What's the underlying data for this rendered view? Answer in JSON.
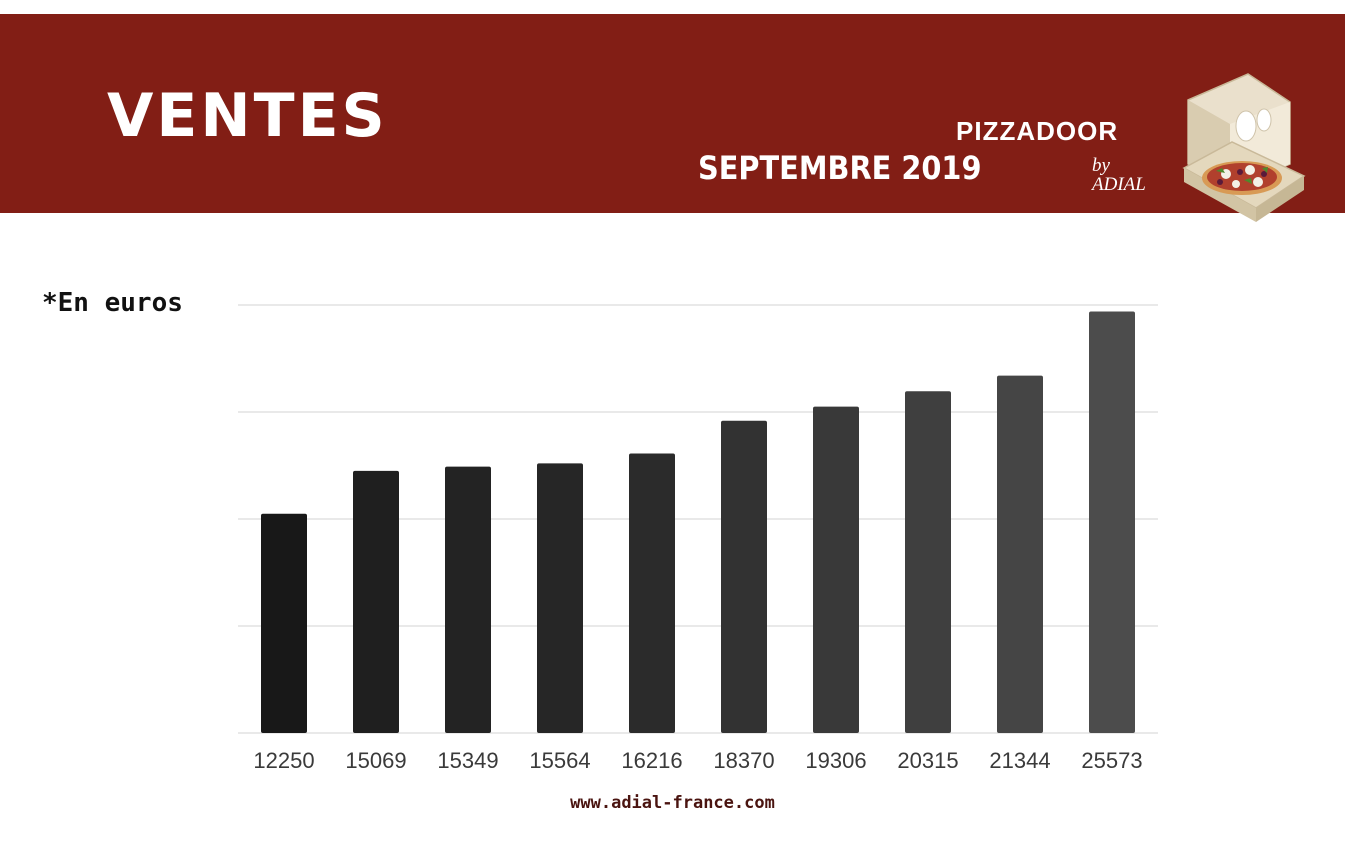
{
  "header": {
    "title": "VENTES",
    "period": "SEPTEMBRE 2019",
    "logo_brand": "PIZZADOOR",
    "logo_by": "by ADIAL",
    "logo_icon": "pizza-box-icon",
    "background_color": "#821e15"
  },
  "unit_note": "*En euros",
  "footer": {
    "url": "www.adial-france.com"
  },
  "chart_data": {
    "type": "bar",
    "categories": [
      "12250",
      "15069",
      "15349",
      "15564",
      "16216",
      "18370",
      "19306",
      "20315",
      "21344",
      "25573"
    ],
    "values": [
      12250,
      15069,
      15349,
      15564,
      16216,
      18370,
      19306,
      20315,
      21344,
      25573
    ],
    "title": "",
    "xlabel": "",
    "ylabel": "",
    "ylim": [
      -2200,
      26000
    ],
    "grid": true,
    "legend": "none",
    "colors": [
      "#181818",
      "#1f1f1f",
      "#232323",
      "#262626",
      "#2b2b2b",
      "#323232",
      "#393939",
      "#3f3f3f",
      "#454545",
      "#4c4c4c"
    ]
  }
}
